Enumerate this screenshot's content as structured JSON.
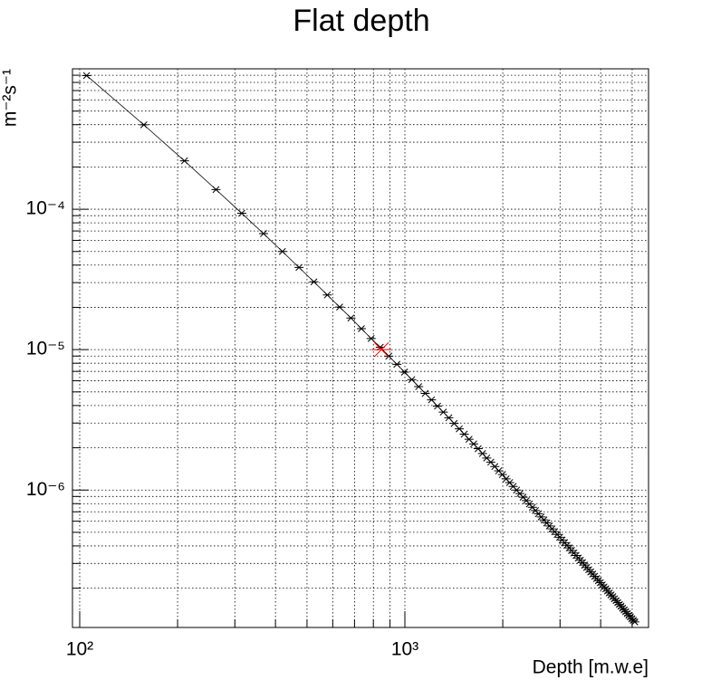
{
  "chart_data": {
    "type": "scatter",
    "title": "Flat depth",
    "x_label": "Depth [m.w.e]",
    "y_label": "m⁻²s⁻¹",
    "xlog": true,
    "ylog": true,
    "grid": true,
    "xlim": [
      95,
      5614
    ],
    "ylim": [
      1.05e-07,
      0.001
    ],
    "xticks": [
      {
        "value": 100,
        "label": "10²"
      },
      {
        "value": 1000,
        "label": "10³"
      }
    ],
    "yticks": [
      {
        "value": 1e-06,
        "label": "10⁻⁶"
      },
      {
        "value": 1e-05,
        "label": "10⁻⁵"
      },
      {
        "value": 0.0001,
        "label": "10⁻⁴"
      }
    ],
    "xminorticks": [
      200,
      300,
      400,
      500,
      600,
      700,
      800,
      900,
      2000,
      3000,
      4000,
      5000
    ],
    "yminorticks": [
      2e-07,
      3e-07,
      4e-07,
      5e-07,
      6e-07,
      7e-07,
      8e-07,
      9e-07,
      2e-06,
      3e-06,
      4e-06,
      5e-06,
      6e-06,
      7e-06,
      8e-06,
      9e-06,
      2e-05,
      3e-05,
      4e-05,
      5e-05,
      6e-05,
      7e-05,
      8e-05,
      9e-05,
      0.0002,
      0.0003,
      0.0004,
      0.0005,
      0.0006,
      0.0007,
      0.0008,
      0.0009
    ],
    "series": [
      {
        "color": "#000000",
        "line": true,
        "marker_size": 5,
        "x": [
          105,
          157.5,
          210,
          262.5,
          315,
          367.5,
          420,
          472.5,
          525,
          577.5,
          630,
          682.5,
          735,
          787.5,
          840,
          892.5,
          945,
          997.5,
          1050,
          1102.5,
          1155,
          1207.5,
          1260,
          1312.5,
          1365,
          1417.5,
          1470,
          1522.5,
          1575,
          1627.5,
          1680,
          1732.5,
          1785,
          1837.5,
          1890,
          1942.5,
          1995,
          2047.5,
          2100,
          2152.5,
          2205,
          2257.5,
          2310,
          2362.5,
          2415,
          2467.5,
          2520,
          2572.5,
          2625,
          2677.5,
          2730,
          2782.5,
          2835,
          2887.5,
          2940,
          2992.5,
          3045,
          3097.5,
          3150,
          3202.5,
          3255,
          3307.5,
          3360,
          3412.5,
          3465,
          3517.5,
          3570,
          3622.5,
          3675,
          3727.5,
          3780,
          3832.5,
          3885,
          3937.5,
          3990,
          4042.5,
          4095,
          4147.5,
          4200,
          4252.5,
          4305,
          4357.5,
          4410,
          4462.5,
          4515,
          4567.5,
          4620,
          4672.5,
          4725,
          4777.5,
          4830,
          4882.5,
          4935,
          4987.5,
          5040,
          5092.5
        ],
        "values": [
          0.000895,
          0.000399,
          0.000221,
          0.000138,
          9.36e-05,
          6.7e-05,
          5e-05,
          3.85e-05,
          3.04e-05,
          2.45e-05,
          2.01e-05,
          1.68e-05,
          1.41e-05,
          1.2e-05,
          1.04e-05,
          8.99e-06,
          7.86e-06,
          6.92e-06,
          6.12e-06,
          5.45e-06,
          4.88e-06,
          4.39e-06,
          3.96e-06,
          3.59e-06,
          3.27e-06,
          2.98e-06,
          2.73e-06,
          2.5e-06,
          2.3e-06,
          2.13e-06,
          1.97e-06,
          1.82e-06,
          1.69e-06,
          1.58e-06,
          1.47e-06,
          1.37e-06,
          1.29e-06,
          1.2e-06,
          1.13e-06,
          1.06e-06,
          1e-06,
          9.43e-07,
          8.9e-07,
          8.41e-07,
          7.96e-07,
          7.54e-07,
          7.14e-07,
          6.78e-07,
          6.44e-07,
          6.13e-07,
          5.83e-07,
          5.55e-07,
          5.29e-07,
          5.05e-07,
          4.83e-07,
          4.61e-07,
          4.41e-07,
          4.22e-07,
          4.04e-07,
          3.87e-07,
          3.71e-07,
          3.56e-07,
          3.42e-07,
          3.28e-07,
          3.16e-07,
          3.04e-07,
          2.92e-07,
          2.81e-07,
          2.71e-07,
          2.61e-07,
          2.52e-07,
          2.43e-07,
          2.34e-07,
          2.26e-07,
          2.19e-07,
          2.11e-07,
          2.04e-07,
          1.98e-07,
          1.91e-07,
          1.85e-07,
          1.79e-07,
          1.74e-07,
          1.68e-07,
          1.63e-07,
          1.58e-07,
          1.53e-07,
          1.49e-07,
          1.44e-07,
          1.4e-07,
          1.36e-07,
          1.32e-07,
          1.28e-07,
          1.25e-07,
          1.21e-07,
          1.18e-07,
          1.15e-07
        ]
      },
      {
        "color": "#ff0000",
        "line": false,
        "marker_size": 11,
        "x": [
          847
        ],
        "values": [
          1e-05
        ]
      }
    ]
  }
}
